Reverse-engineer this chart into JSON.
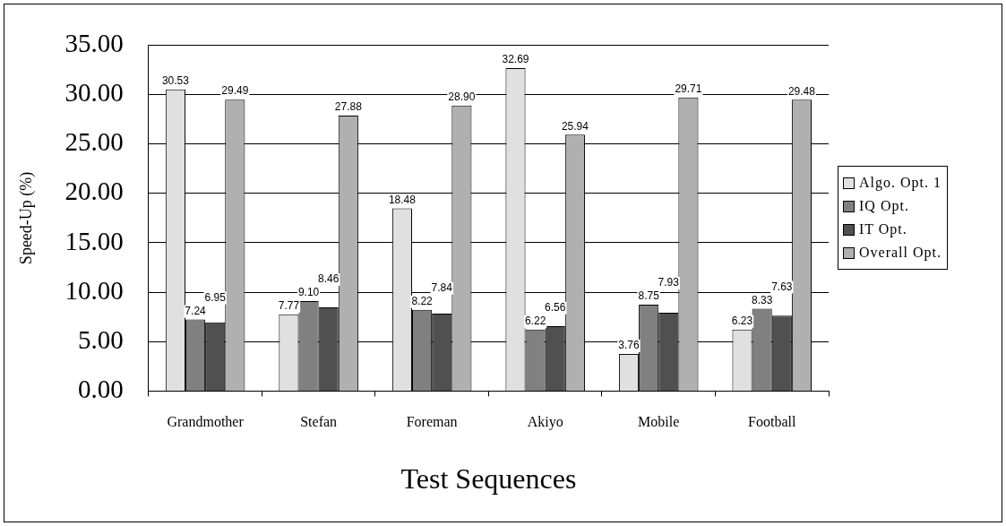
{
  "chart_data": {
    "type": "bar",
    "xlabel": "Test Sequences",
    "ylabel": "Speed-Up (%)",
    "categories": [
      "Grandmother",
      "Stefan",
      "Foreman",
      "Akiyo",
      "Mobile",
      "Football"
    ],
    "series": [
      {
        "name": "Algo. Opt. 1",
        "color": "#e0e0e0",
        "values": [
          30.53,
          7.77,
          18.48,
          32.69,
          3.76,
          6.23
        ],
        "value_labels": [
          "30.53",
          "7.77",
          "18.48",
          "32.69",
          "3.76",
          "6.23"
        ]
      },
      {
        "name": "IQ Opt.",
        "color": "#808080",
        "values": [
          7.24,
          9.1,
          8.22,
          6.22,
          8.75,
          8.33
        ],
        "value_labels": [
          "7.24",
          "9.10",
          "8.22",
          "6.22",
          "8.75",
          "8.33"
        ]
      },
      {
        "name": "IT Opt.",
        "color": "#505050",
        "values": [
          6.95,
          8.46,
          7.84,
          6.56,
          7.93,
          7.63
        ],
        "value_labels": [
          "6.95",
          "8.46",
          "7.84",
          "6.56",
          "7.93",
          "7.63"
        ]
      },
      {
        "name": "Overall Opt.",
        "color": "#b0b0b0",
        "values": [
          29.49,
          27.88,
          28.9,
          25.94,
          29.71,
          29.48
        ],
        "value_labels": [
          "29.49",
          "27.88",
          "28.90",
          "25.94",
          "29.71",
          "29.48"
        ]
      }
    ],
    "ylim": [
      0,
      35
    ],
    "yticks": [
      {
        "value": 0,
        "label": "0.00"
      },
      {
        "value": 5,
        "label": "5.00"
      },
      {
        "value": 10,
        "label": "10.00"
      },
      {
        "value": 15,
        "label": "15.00"
      },
      {
        "value": 20,
        "label": "20.00"
      },
      {
        "value": 25,
        "label": "25.00"
      },
      {
        "value": 30,
        "label": "30.00"
      },
      {
        "value": 35,
        "label": "35.00"
      }
    ],
    "grid": "y",
    "legend": "right"
  }
}
